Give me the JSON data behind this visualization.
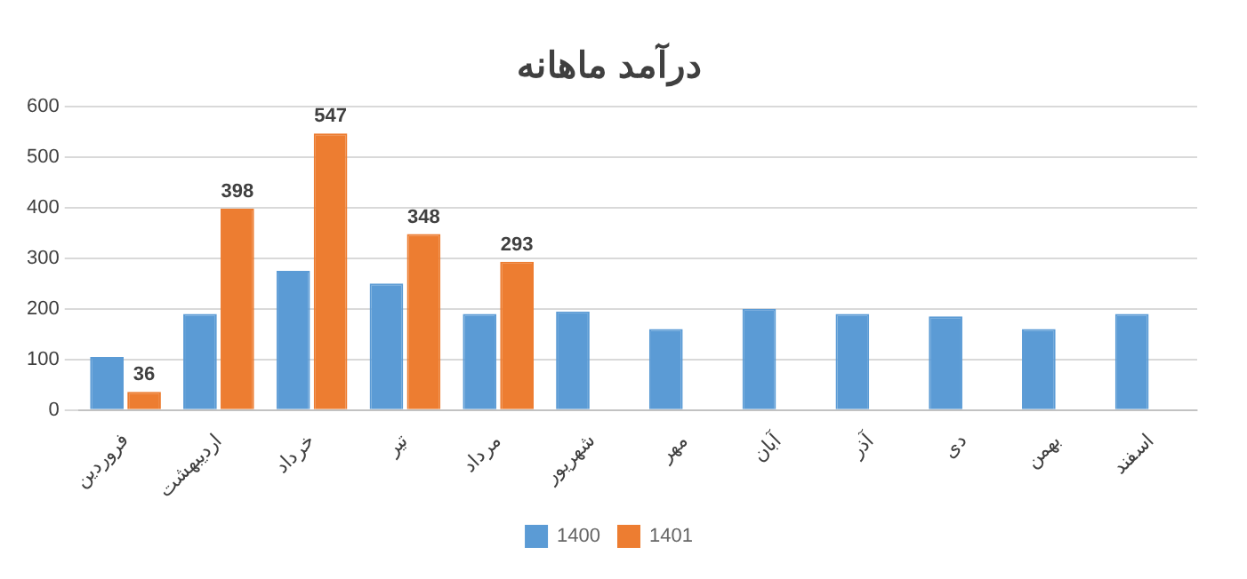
{
  "chart_data": {
    "type": "bar",
    "title": "درآمد ماهانه",
    "categories": [
      "فروردین",
      "اردیبهشت",
      "خرداد",
      "تیر",
      "مرداد",
      "شهریور",
      "مهر",
      "آبان",
      "آذر",
      "دی",
      "بهمن",
      "اسفند"
    ],
    "series": [
      {
        "name": "1400",
        "color": "#5b9bd5",
        "values": [
          105,
          190,
          275,
          250,
          190,
          195,
          160,
          200,
          190,
          185,
          160,
          190
        ]
      },
      {
        "name": "1401",
        "color": "#ed7d31",
        "values": [
          36,
          398,
          547,
          348,
          293,
          null,
          null,
          null,
          null,
          null,
          null,
          null
        ],
        "value_labels": [
          "36",
          "398",
          "547",
          "348",
          "293",
          null,
          null,
          null,
          null,
          null,
          null,
          null
        ]
      }
    ],
    "ylim": [
      0,
      600
    ],
    "yticks": [
      0,
      100,
      200,
      300,
      400,
      500,
      600
    ],
    "grid": "y",
    "legend": "bottom"
  }
}
